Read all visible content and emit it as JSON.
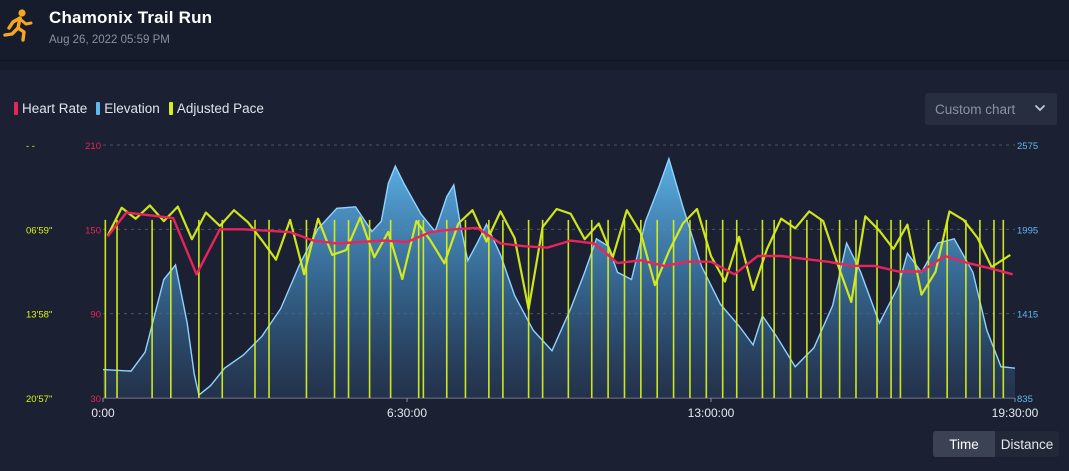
{
  "header": {
    "title": "Chamonix Trail Run",
    "date": "Aug 26, 2022 05:59 PM"
  },
  "legend": [
    {
      "label": "Heart Rate",
      "color": "#e8245a"
    },
    {
      "label": "Elevation",
      "color": "#5fb8f0"
    },
    {
      "label": "Adjusted Pace",
      "color": "#d8f01a"
    }
  ],
  "controls": {
    "dropdown_label": "Custom chart",
    "toggle_time": "Time",
    "toggle_distance": "Distance",
    "toggle_selected": "Time"
  },
  "icons": {
    "logo": "runner-icon",
    "dropdown": "chevron-down-icon"
  },
  "chart_data": {
    "type": "line",
    "x_unit": "elapsed time",
    "x_range_hours": [
      0,
      19.5
    ],
    "x_ticks": [
      "0:00",
      "6:30:00",
      "13:00:00",
      "19:30:00"
    ],
    "grid": true,
    "legend_position": "top-left",
    "axes": {
      "heart_rate": {
        "side": "left",
        "ticks": [
          "30",
          "90",
          "150",
          "210"
        ],
        "range": [
          30,
          210
        ],
        "color": "#e8245a"
      },
      "pace": {
        "side": "left",
        "ticks": [
          "20'57\"",
          "13'58\"",
          "06'59\"",
          "- -"
        ],
        "color": "#d8f01a"
      },
      "elevation": {
        "side": "right",
        "ticks": [
          "835",
          "1415",
          "1995",
          "2575"
        ],
        "range": [
          835,
          2575
        ],
        "color": "#5fb8f0"
      }
    },
    "series": [
      {
        "name": "Elevation",
        "type": "area",
        "color": "#5fb8f0",
        "x": [
          0,
          0.6,
          0.9,
          1.3,
          1.55,
          1.8,
          1.95,
          2.05,
          2.3,
          2.6,
          3.0,
          3.4,
          3.8,
          4.2,
          4.6,
          5.0,
          5.4,
          5.75,
          5.95,
          6.1,
          6.25,
          6.45,
          6.8,
          7.1,
          7.35,
          7.5,
          7.65,
          7.8,
          8.0,
          8.2,
          8.5,
          8.8,
          9.2,
          9.6,
          10.0,
          10.3,
          10.55,
          10.8,
          11.0,
          11.3,
          11.6,
          11.9,
          12.1,
          12.4,
          12.8,
          13.2,
          13.6,
          13.9,
          14.1,
          14.4,
          14.8,
          15.2,
          15.6,
          15.9,
          16.2,
          16.6,
          17.0,
          17.2,
          17.5,
          17.85,
          18.2,
          18.6,
          18.9,
          19.2,
          19.5
        ],
        "y": [
          1030,
          1020,
          1150,
          1650,
          1750,
          1350,
          1000,
          855,
          920,
          1040,
          1130,
          1260,
          1450,
          1750,
          2000,
          2140,
          2150,
          1980,
          2050,
          2310,
          2430,
          2300,
          2100,
          1980,
          2220,
          2300,
          2010,
          1780,
          1900,
          2030,
          1820,
          1540,
          1300,
          1160,
          1450,
          1700,
          1930,
          1880,
          1700,
          1650,
          2050,
          2300,
          2480,
          2150,
          1740,
          1480,
          1330,
          1200,
          1400,
          1260,
          1050,
          1180,
          1470,
          1900,
          1700,
          1350,
          1600,
          1830,
          1700,
          1900,
          1930,
          1700,
          1300,
          1050,
          1040
        ]
      },
      {
        "name": "Heart Rate",
        "type": "line",
        "color": "#e8245a",
        "x": [
          0.1,
          0.5,
          1.0,
          1.5,
          2.0,
          2.5,
          3.0,
          3.5,
          4.0,
          4.5,
          5.0,
          5.5,
          6.0,
          6.5,
          7.0,
          7.5,
          8.0,
          8.5,
          9.0,
          9.5,
          10.0,
          10.5,
          11.0,
          11.5,
          12.0,
          12.5,
          13.0,
          13.5,
          14.0,
          14.5,
          15.0,
          15.5,
          16.0,
          16.5,
          17.0,
          17.5,
          18.0,
          18.5,
          19.0,
          19.45
        ],
        "y": [
          145,
          162,
          160,
          158,
          118,
          150,
          150,
          149,
          148,
          142,
          140,
          141,
          142,
          141,
          148,
          150,
          151,
          140,
          138,
          137,
          142,
          140,
          126,
          128,
          124,
          127,
          127,
          118,
          131,
          131,
          129,
          127,
          124,
          124,
          120,
          120,
          131,
          126,
          122,
          118
        ]
      },
      {
        "name": "Adjusted Pace",
        "type": "line",
        "color": "#d8f01a",
        "x": [
          0.1,
          0.4,
          0.7,
          1.0,
          1.3,
          1.6,
          1.9,
          2.2,
          2.5,
          2.8,
          3.1,
          3.4,
          3.7,
          4.0,
          4.3,
          4.6,
          4.9,
          5.2,
          5.5,
          5.8,
          6.1,
          6.4,
          6.7,
          7.0,
          7.3,
          7.6,
          7.9,
          8.2,
          8.5,
          8.8,
          9.1,
          9.4,
          9.7,
          10.0,
          10.3,
          10.6,
          10.9,
          11.2,
          11.5,
          11.8,
          12.1,
          12.4,
          12.7,
          13.0,
          13.3,
          13.6,
          13.9,
          14.2,
          14.5,
          14.8,
          15.1,
          15.4,
          15.7,
          16.0,
          16.3,
          16.6,
          16.9,
          17.2,
          17.5,
          17.8,
          18.1,
          18.4,
          18.7,
          19.0,
          19.4
        ],
        "y": [
          7.5,
          5.2,
          6.1,
          5.0,
          6.3,
          5.1,
          7.8,
          5.6,
          6.7,
          5.4,
          6.4,
          7.9,
          9.5,
          6.2,
          10.7,
          6.1,
          9.1,
          8.7,
          6.0,
          9.3,
          7.2,
          11.1,
          6.3,
          7.9,
          9.8,
          6.5,
          5.4,
          8.0,
          5.5,
          7.7,
          13.6,
          6.8,
          5.3,
          5.7,
          7.8,
          6.5,
          9.3,
          5.4,
          7.3,
          11.6,
          8.8,
          6.5,
          5.3,
          9.2,
          11.3,
          7.6,
          12.0,
          8.6,
          6.1,
          6.9,
          5.5,
          6.3,
          9.8,
          13.0,
          5.9,
          7.1,
          8.6,
          6.6,
          12.4,
          10.5,
          5.5,
          6.2,
          7.7,
          10.1,
          9.1
        ]
      }
    ],
    "pace_dropouts_hours": [
      0.05,
      0.3,
      1.05,
      1.45,
      2.05,
      2.55,
      3.25,
      3.55,
      4.35,
      4.95,
      5.25,
      5.7,
      6.15,
      6.75,
      6.85,
      7.35,
      7.75,
      8.25,
      8.55,
      9.1,
      9.4,
      9.95,
      10.45,
      10.8,
      11.15,
      11.5,
      11.85,
      12.2,
      12.55,
      12.9,
      13.25,
      13.55,
      14.1,
      14.35,
      14.7,
      15.05,
      15.35,
      15.75,
      16.1,
      16.55,
      16.85,
      17.05,
      17.65,
      18.05,
      18.45,
      18.75,
      19.05,
      19.25
    ]
  }
}
